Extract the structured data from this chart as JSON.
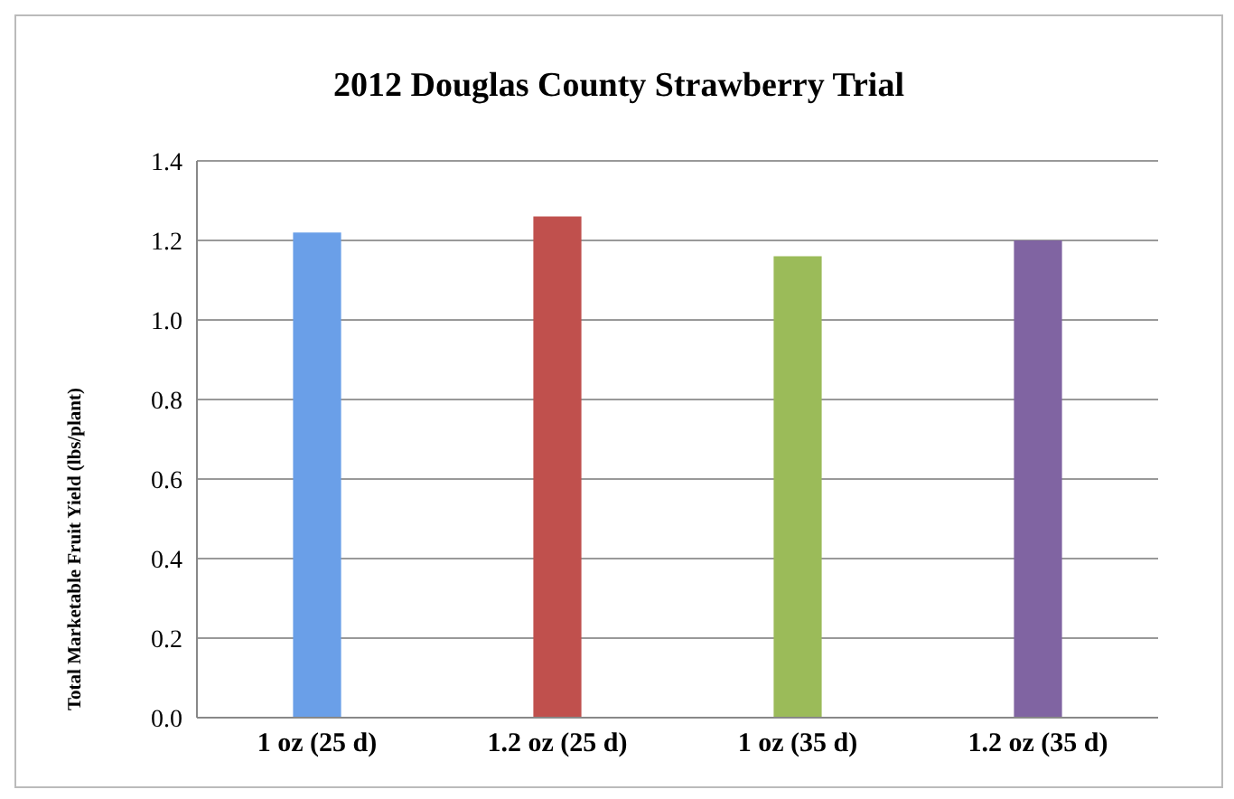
{
  "chart_data": {
    "type": "bar",
    "title": "2012 Douglas County Strawberry Trial",
    "ylabel": "Total Marketable Fruit Yield (lbs/plant)",
    "categories": [
      "1 oz (25 d)",
      "1.2 oz (25 d)",
      "1 oz (35 d)",
      "1.2 oz (35 d)"
    ],
    "values": [
      1.22,
      1.26,
      1.16,
      1.2
    ],
    "colors": [
      "#6a9fe8",
      "#c0504d",
      "#9bbb59",
      "#8064a2"
    ],
    "ylim": [
      0,
      1.4
    ],
    "yticks": [
      {
        "value": 0,
        "label": "0.0"
      },
      0.2,
      0.4,
      0.6,
      0.8,
      {
        "value": 1,
        "label": "1.0"
      },
      1.2,
      1.4
    ],
    "grid": "y"
  }
}
